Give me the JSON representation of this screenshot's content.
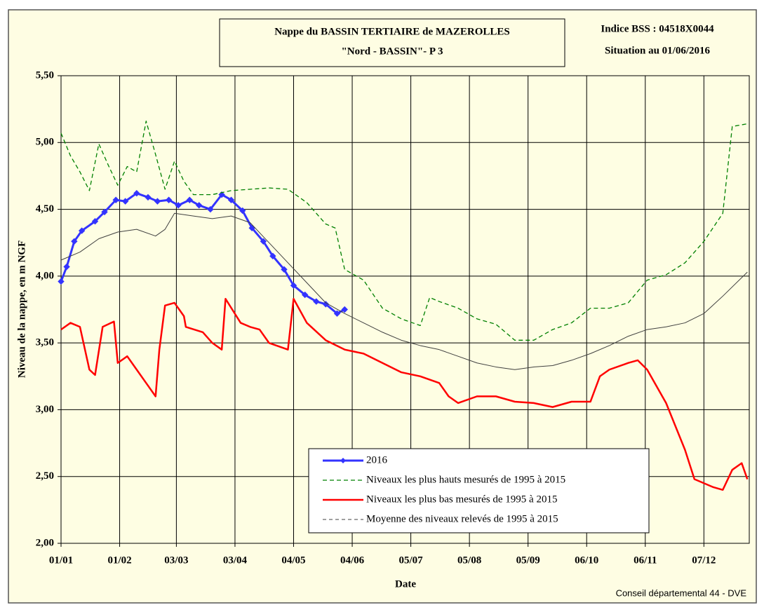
{
  "chart_data": {
    "type": "line",
    "title": "Nappe du BASSIN TERTIAIRE de MAZEROLLES",
    "subtitle": "\"Nord - BASSIN\"- P 3",
    "annotations": [
      "Indice BSS : 04518X0044",
      "Situation au 01/06/2016",
      "Conseil départemental 44 - DVE"
    ],
    "x_label": "Date",
    "y_label": "Niveau de la nappe, en m NGF",
    "xlim": [
      0,
      364
    ],
    "xticks": [
      {
        "value": 0,
        "label": "01/01"
      },
      {
        "value": 31,
        "label": "01/02"
      },
      {
        "value": 61,
        "label": "03/03"
      },
      {
        "value": 92,
        "label": "03/04"
      },
      {
        "value": 123,
        "label": "04/05"
      },
      {
        "value": 154,
        "label": "04/06"
      },
      {
        "value": 185,
        "label": "05/07"
      },
      {
        "value": 216,
        "label": "05/08"
      },
      {
        "value": 247,
        "label": "05/09"
      },
      {
        "value": 278,
        "label": "06/10"
      },
      {
        "value": 309,
        "label": "06/11"
      },
      {
        "value": 340,
        "label": "07/12"
      }
    ],
    "ylim": [
      2,
      5.5
    ],
    "yticks": [
      {
        "value": 2,
        "label": "2,00"
      },
      {
        "value": 2.5,
        "label": "2,50"
      },
      {
        "value": 3,
        "label": "3,00"
      },
      {
        "value": 3.5,
        "label": "3,50"
      },
      {
        "value": 4,
        "label": "4,00"
      },
      {
        "value": 4.5,
        "label": "4,50"
      },
      {
        "value": 5,
        "label": "5,00"
      },
      {
        "value": 5.5,
        "label": "5,50"
      }
    ],
    "grid": true,
    "legend": "bottom-right",
    "series": [
      {
        "name": "2016",
        "color": "#3333ff",
        "width": 3,
        "dash": "none",
        "marker": "diamond",
        "x": [
          0,
          3,
          7,
          11,
          18,
          23,
          29,
          34,
          40,
          46,
          51,
          57,
          62,
          68,
          73,
          79,
          85,
          90,
          96,
          101,
          107,
          112,
          118,
          123,
          129,
          135,
          140,
          146,
          150
        ],
        "values": [
          3.96,
          4.07,
          4.26,
          4.34,
          4.41,
          4.48,
          4.57,
          4.56,
          4.62,
          4.59,
          4.56,
          4.57,
          4.53,
          4.57,
          4.53,
          4.5,
          4.61,
          4.57,
          4.49,
          4.36,
          4.26,
          4.15,
          4.05,
          3.93,
          3.86,
          3.81,
          3.79,
          3.72,
          3.75
        ]
      },
      {
        "name": "Niveaux les plus hauts mesurés de 1995 à 2015",
        "color": "#008000",
        "width": 1.3,
        "dash": "6 4",
        "marker": "none",
        "x": [
          0,
          5,
          10,
          15,
          20,
          25,
          30,
          35,
          40,
          45,
          50,
          55,
          60,
          65,
          70,
          80,
          90,
          100,
          110,
          120,
          130,
          140,
          145,
          150,
          160,
          170,
          180,
          190,
          195,
          200,
          210,
          220,
          230,
          240,
          250,
          260,
          270,
          280,
          290,
          300,
          310,
          320,
          330,
          340,
          350,
          355,
          363
        ],
        "values": [
          5.07,
          4.9,
          4.78,
          4.64,
          4.99,
          4.83,
          4.68,
          4.82,
          4.78,
          5.16,
          4.91,
          4.65,
          4.86,
          4.71,
          4.61,
          4.61,
          4.64,
          4.65,
          4.66,
          4.65,
          4.55,
          4.39,
          4.36,
          4.05,
          3.97,
          3.76,
          3.68,
          3.63,
          3.84,
          3.81,
          3.76,
          3.68,
          3.64,
          3.52,
          3.52,
          3.6,
          3.65,
          3.76,
          3.76,
          3.8,
          3.97,
          4.01,
          4.1,
          4.26,
          4.47,
          5.12,
          5.14
        ]
      },
      {
        "name": "Niveaux les plus bas mesurés de 1995 à 2015",
        "color": "#ff0000",
        "width": 2.5,
        "dash": "none",
        "marker": "none",
        "x": [
          0,
          5,
          10,
          15,
          18,
          22,
          28,
          30,
          35,
          40,
          45,
          50,
          52,
          55,
          60,
          65,
          66,
          75,
          80,
          85,
          87,
          95,
          100,
          105,
          110,
          120,
          123,
          130,
          140,
          150,
          160,
          170,
          180,
          190,
          200,
          205,
          210,
          220,
          230,
          240,
          250,
          260,
          270,
          280,
          285,
          290,
          300,
          305,
          310,
          320,
          330,
          335,
          345,
          350,
          355,
          360,
          363
        ],
        "values": [
          3.6,
          3.65,
          3.62,
          3.3,
          3.26,
          3.62,
          3.66,
          3.35,
          3.4,
          3.3,
          3.2,
          3.1,
          3.45,
          3.78,
          3.8,
          3.7,
          3.62,
          3.58,
          3.5,
          3.45,
          3.83,
          3.65,
          3.62,
          3.6,
          3.5,
          3.45,
          3.83,
          3.65,
          3.52,
          3.45,
          3.42,
          3.35,
          3.28,
          3.25,
          3.2,
          3.1,
          3.05,
          3.1,
          3.1,
          3.06,
          3.05,
          3.02,
          3.06,
          3.06,
          3.25,
          3.3,
          3.35,
          3.37,
          3.3,
          3.05,
          2.7,
          2.48,
          2.42,
          2.4,
          2.55,
          2.6,
          2.48
        ]
      },
      {
        "name": "Moyenne des niveaux relevés de 1995 à 2015",
        "color": "#404040",
        "width": 1,
        "dash": "none",
        "legend_dash": "5 4",
        "marker": "none",
        "x": [
          0,
          10,
          20,
          30,
          40,
          50,
          55,
          60,
          70,
          80,
          90,
          100,
          110,
          120,
          130,
          140,
          150,
          160,
          170,
          180,
          190,
          200,
          210,
          220,
          230,
          240,
          250,
          260,
          270,
          280,
          290,
          300,
          310,
          320,
          330,
          340,
          350,
          363
        ],
        "values": [
          4.12,
          4.18,
          4.28,
          4.33,
          4.35,
          4.3,
          4.35,
          4.47,
          4.45,
          4.43,
          4.45,
          4.4,
          4.25,
          4.1,
          3.95,
          3.8,
          3.72,
          3.65,
          3.58,
          3.52,
          3.48,
          3.45,
          3.4,
          3.35,
          3.32,
          3.3,
          3.32,
          3.33,
          3.37,
          3.42,
          3.48,
          3.55,
          3.6,
          3.62,
          3.65,
          3.72,
          3.85,
          4.03
        ]
      }
    ]
  }
}
